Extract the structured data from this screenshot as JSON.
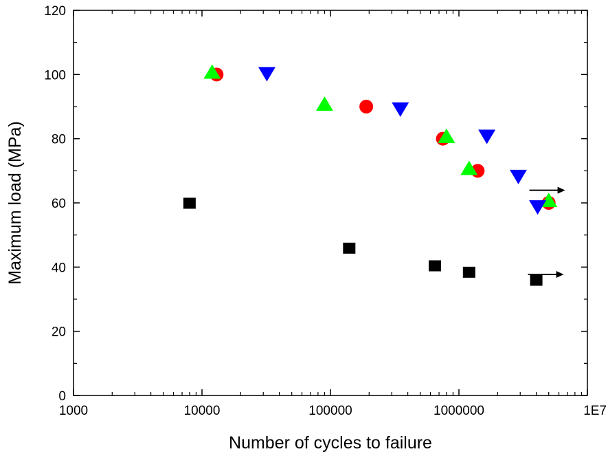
{
  "chart_data": {
    "type": "scatter",
    "title": "",
    "xlabel": "Number of cycles to failure",
    "ylabel": "Maximum load (MPa)",
    "xscale": "log",
    "xlim": [
      1000,
      10000000
    ],
    "ylim": [
      0,
      120
    ],
    "x_ticks": [
      1000,
      10000,
      100000,
      1000000,
      10000000
    ],
    "x_tick_labels": [
      "1000",
      "10000",
      "100000",
      "1000000",
      "1E7"
    ],
    "y_ticks": [
      0,
      20,
      40,
      60,
      80,
      100,
      120
    ],
    "y_tick_labels": [
      "0",
      "20",
      "40",
      "60",
      "80",
      "100",
      "120"
    ],
    "grid": false,
    "legend": "none",
    "series": [
      {
        "marker": "square",
        "color": "#000000",
        "points": [
          {
            "x": 8000,
            "y": 60
          },
          {
            "x": 140000,
            "y": 46
          },
          {
            "x": 650000,
            "y": 40.5
          },
          {
            "x": 1200000,
            "y": 38.5
          },
          {
            "x": 4000000,
            "y": 36,
            "runout": true
          }
        ]
      },
      {
        "marker": "circle",
        "color": "#ff0000",
        "points": [
          {
            "x": 13000,
            "y": 100
          },
          {
            "x": 190000,
            "y": 90
          },
          {
            "x": 750000,
            "y": 80
          },
          {
            "x": 1400000,
            "y": 70
          },
          {
            "x": 5000000,
            "y": 60
          }
        ]
      },
      {
        "marker": "triangle-up",
        "color": "#00ff00",
        "points": [
          {
            "x": 12000,
            "y": 100.5
          },
          {
            "x": 90000,
            "y": 90.5
          },
          {
            "x": 800000,
            "y": 80.5
          },
          {
            "x": 1200000,
            "y": 70.5
          },
          {
            "x": 5000000,
            "y": 60.5
          }
        ]
      },
      {
        "marker": "triangle-down",
        "color": "#0000ff",
        "points": [
          {
            "x": 32000,
            "y": 100.5
          },
          {
            "x": 350000,
            "y": 89.5
          },
          {
            "x": 1650000,
            "y": 81
          },
          {
            "x": 2900000,
            "y": 68.5
          },
          {
            "x": 4100000,
            "y": 59,
            "runout": true
          }
        ]
      }
    ]
  }
}
